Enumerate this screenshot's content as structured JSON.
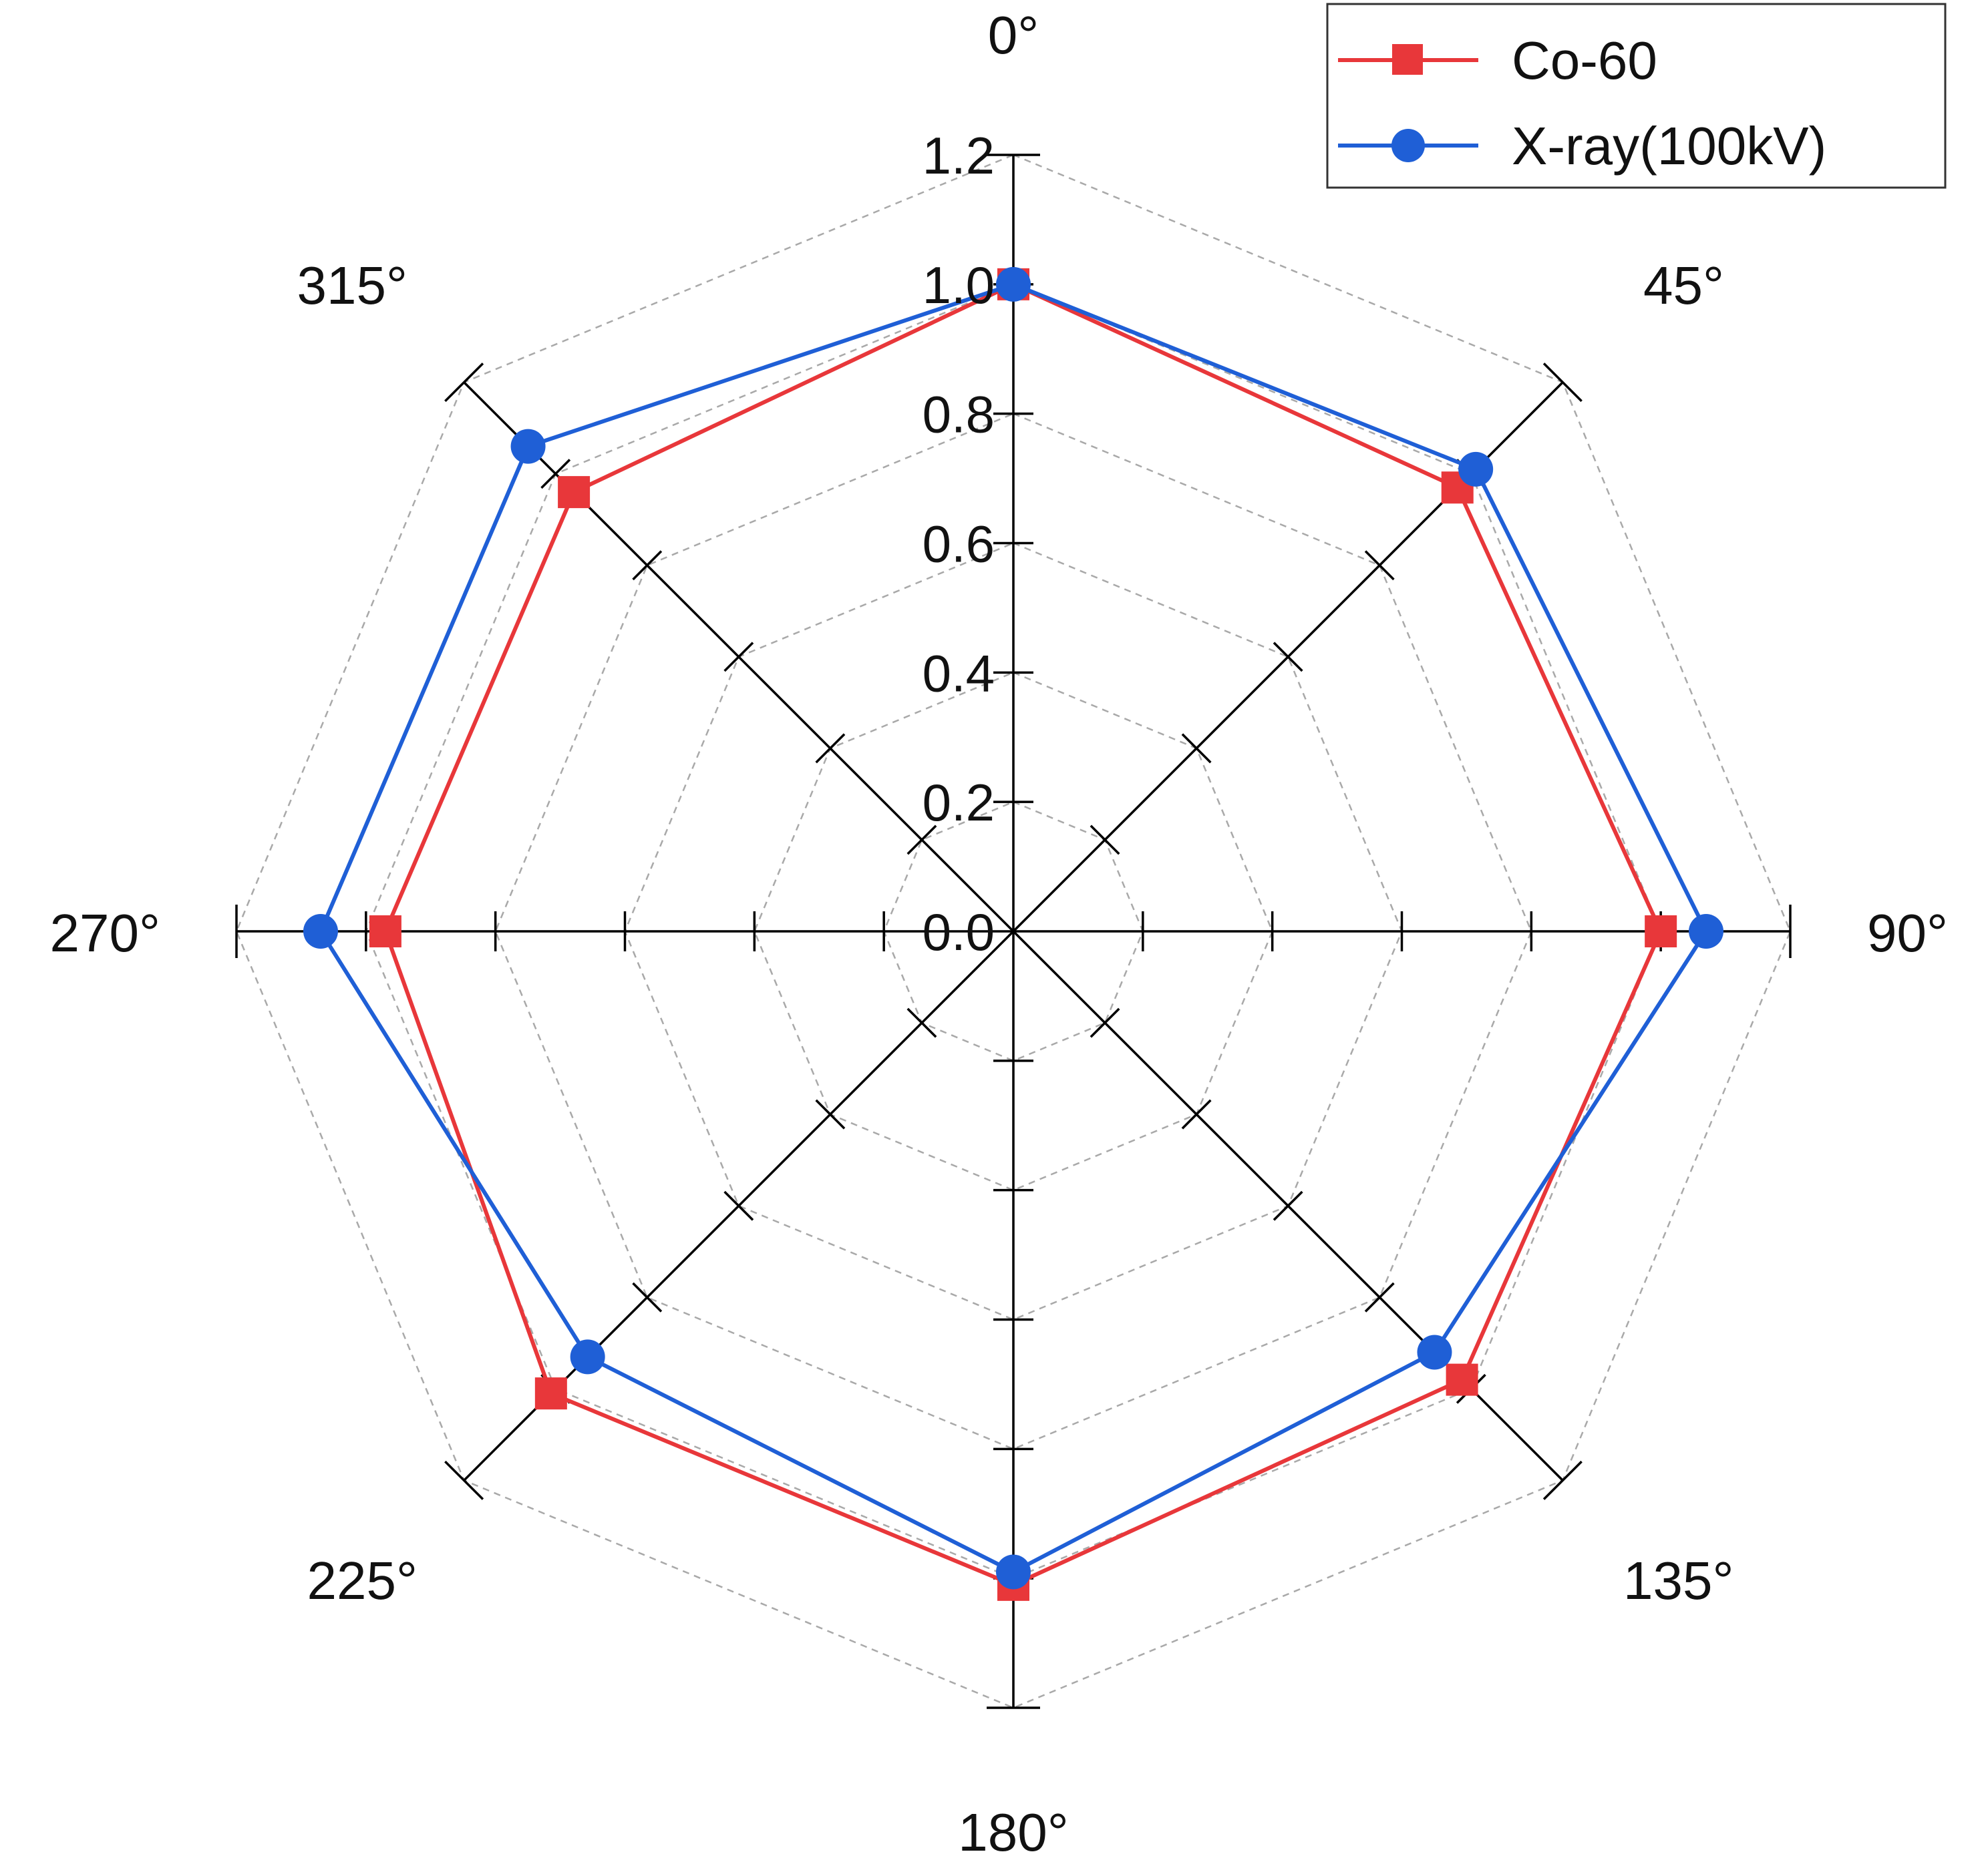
{
  "chart_data": {
    "type": "radar",
    "angles_deg": [
      0,
      45,
      90,
      135,
      180,
      225,
      270,
      315
    ],
    "angle_labels": [
      "0°",
      "45°",
      "90°",
      "135°",
      "180°",
      "225°",
      "270°",
      "315°"
    ],
    "rlim": [
      0,
      1.2
    ],
    "radial_ticks": [
      0.0,
      0.2,
      0.4,
      0.6,
      0.8,
      1.0,
      1.2
    ],
    "radial_tick_labels": [
      "0.0",
      "0.2",
      "0.4",
      "0.6",
      "0.8",
      "1.0",
      "1.2"
    ],
    "grid": true,
    "legend_position": "top-right",
    "series": [
      {
        "name": "Co-60",
        "color": "#e8373a",
        "marker": "square",
        "values": [
          1.0,
          0.97,
          1.0,
          0.98,
          1.01,
          1.01,
          0.97,
          0.96
        ]
      },
      {
        "name": "X-ray(100kV)",
        "color": "#1f5fd6",
        "marker": "circle",
        "values": [
          1.0,
          1.01,
          1.07,
          0.92,
          0.99,
          0.93,
          1.07,
          1.06
        ]
      }
    ]
  }
}
